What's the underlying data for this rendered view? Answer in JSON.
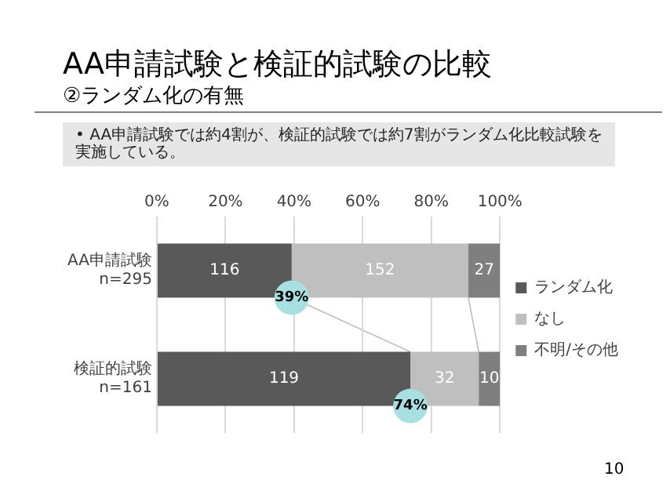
{
  "chart_data": {
    "type": "bar",
    "orientation": "horizontal",
    "stacked": true,
    "title": "AA申請試験と検証的試験の比較",
    "subtitle": "②ランダム化の有無",
    "categories": [
      "AA申請試験\nn=295",
      "検証的試験\nn=161"
    ],
    "series": [
      {
        "name": "ランダム化",
        "color": "#595959",
        "values": [
          39.3,
          73.9
        ]
      },
      {
        "name": "なし",
        "color": "#bfbfbf",
        "values": [
          51.5,
          19.9
        ]
      },
      {
        "name": "不明/その他",
        "color": "#7f7f7f",
        "values": [
          9.2,
          6.2
        ]
      }
    ],
    "xlim": [
      0,
      100
    ],
    "xticks": [
      {
        "value": 0,
        "label": "0%"
      },
      {
        "value": 20,
        "label": "20%"
      },
      {
        "value": 40,
        "label": "40%"
      },
      {
        "value": 60,
        "label": "60%"
      },
      {
        "value": 80,
        "label": "80%"
      },
      {
        "value": 100,
        "label": "100%"
      }
    ],
    "grid": "x",
    "legend": "right",
    "annotations": [
      "• AA申請試験では約4割が、検証的試験では約7割がランダム化比較試験を実施している。",
      "116",
      "152",
      "119",
      "32",
      {
        "text": "27",
        "x": 100,
        "y": "AA申請試験\nn=295"
      },
      {
        "text": "10",
        "x": 100,
        "y": "検証的試験\nn=161"
      },
      {
        "text": "39%",
        "x": 39.3,
        "y": "AA申請試験\nn=295"
      },
      {
        "text": "74%",
        "x": 73.9,
        "y": "検証的試験\nn=161"
      },
      "10"
    ]
  }
}
